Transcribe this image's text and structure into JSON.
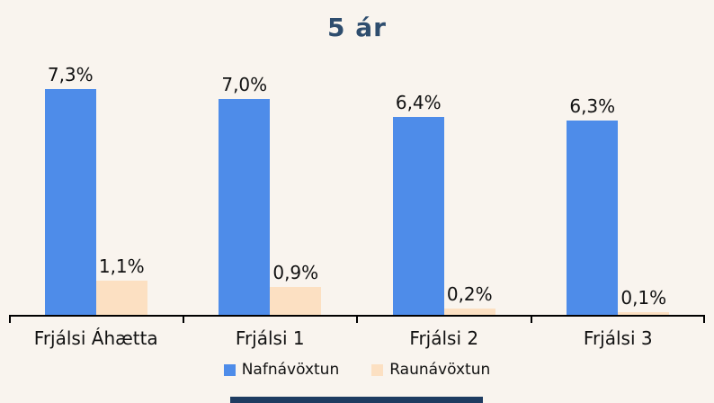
{
  "title": "5 ár",
  "colors": {
    "background": "#f9f4ee",
    "title": "#2e4d6e",
    "axis": "#000000",
    "text": "#111111",
    "nominal_blue": "#4e8ce9",
    "real_peach": "#fce0c2",
    "bottom_strip_navy": "#1f3c61"
  },
  "chart_data": {
    "type": "bar",
    "title": "5 ár",
    "categories": [
      "Frjálsi Áhætta",
      "Frjálsi 1",
      "Frjálsi 2",
      "Frjálsi 3"
    ],
    "series": [
      {
        "name": "Nafnávöxtun",
        "values": [
          7.3,
          7.0,
          6.4,
          6.3
        ],
        "labels": [
          "7,3%",
          "7,0%",
          "6,4%",
          "6,3%"
        ],
        "color": "#4e8ce9"
      },
      {
        "name": "Raunávöxtun",
        "values": [
          1.1,
          0.9,
          0.2,
          0.1
        ],
        "labels": [
          "1,1%",
          "0,9%",
          "0,2%",
          "0,1%"
        ],
        "color": "#fce0c2"
      }
    ],
    "xlabel": "",
    "ylabel": "",
    "ylim": [
      0,
      8.5
    ],
    "grid": false,
    "y_axis_visible": false,
    "value_labels_shown": true,
    "decimal_separator": ",",
    "legend_position": "bottom"
  }
}
